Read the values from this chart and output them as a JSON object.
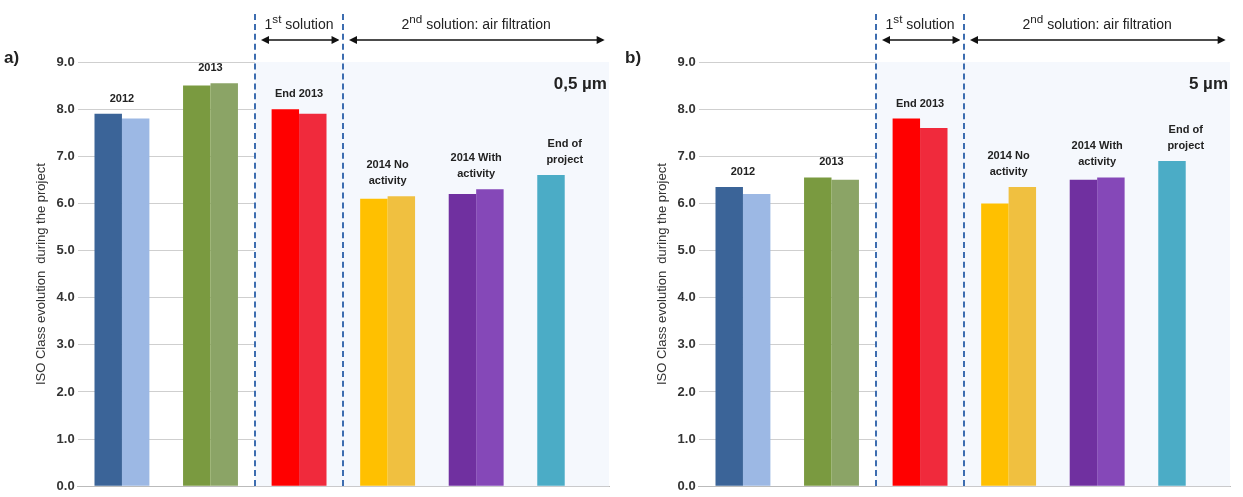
{
  "chart_data": [
    {
      "type": "bar",
      "ylabel": "ISO Class evolution  during the project",
      "categories": [
        "2012",
        "2013",
        "End 2013",
        "2014 No activity",
        "2014 With activity",
        "End of project"
      ],
      "series": [
        {
          "colors": [
            "#3b6498",
            "#7a9a40",
            "#ff0000",
            "#ffc000",
            "#7030a0",
            "#4bacc6"
          ],
          "values": [
            7.9,
            8.5,
            8.0,
            6.1,
            6.2,
            6.6
          ]
        },
        {
          "colors": [
            "#9cb8e4",
            "#8ba466",
            "#f02a3c",
            "#f0c040",
            "#8548b8",
            "#4bacc6"
          ],
          "values": [
            7.8,
            8.55,
            7.9,
            6.15,
            6.3,
            null
          ]
        }
      ],
      "ylim": [
        0,
        9
      ],
      "yticks": [
        {
          "value": 0,
          "label": "0.0"
        },
        {
          "value": 1,
          "label": "1.0"
        },
        {
          "value": 2,
          "label": "2.0"
        },
        {
          "value": 3,
          "label": "3.0"
        },
        {
          "value": 4,
          "label": "4.0"
        },
        {
          "value": 5,
          "label": "5.0"
        },
        {
          "value": 6,
          "label": "6.0"
        },
        {
          "value": 7,
          "label": "7.0"
        },
        {
          "value": 8,
          "label": "8.0"
        },
        {
          "value": 9,
          "label": "9.0"
        }
      ],
      "grid": "y",
      "legend": false,
      "tick_labels": "y",
      "bands": [
        {
          "axis": "x",
          "from": "End 2013",
          "to": "End 2013",
          "label": "1$^{st}$ solution",
          "color": "#f5f8fd"
        },
        {
          "axis": "x",
          "from": "2014 No activity",
          "to": "End of project",
          "label": "2$^{nd}$ solution: air filtration",
          "color": "#f5f8fd"
        }
      ],
      "annotations": [
        "a)",
        "0,5 µm"
      ]
    },
    {
      "type": "bar",
      "ylabel": "ISO Class evolution  during the project",
      "categories": [
        "2012",
        "2013",
        "End 2013",
        "2014 No activity",
        "2014 With activity",
        "End of project"
      ],
      "series": [
        {
          "colors": [
            "#3b6498",
            "#7a9a40",
            "#ff0000",
            "#ffc000",
            "#7030a0",
            "#4bacc6"
          ],
          "values": [
            6.35,
            6.55,
            7.8,
            6.0,
            6.5,
            6.9
          ]
        },
        {
          "colors": [
            "#9cb8e4",
            "#8ba466",
            "#f02a3c",
            "#f0c040",
            "#8548b8",
            "#4bacc6"
          ],
          "values": [
            6.2,
            6.5,
            7.6,
            6.35,
            6.55,
            null
          ]
        }
      ],
      "ylim": [
        0,
        9
      ],
      "yticks": [
        {
          "value": 0,
          "label": "0.0"
        },
        {
          "value": 1,
          "label": "1.0"
        },
        {
          "value": 2,
          "label": "2.0"
        },
        {
          "value": 3,
          "label": "3.0"
        },
        {
          "value": 4,
          "label": "4.0"
        },
        {
          "value": 5,
          "label": "5.0"
        },
        {
          "value": 6,
          "label": "6.0"
        },
        {
          "value": 7,
          "label": "7.0"
        },
        {
          "value": 8,
          "label": "8.0"
        },
        {
          "value": 9,
          "label": "9.0"
        }
      ],
      "grid": "y",
      "legend": false,
      "tick_labels": "y",
      "bands": [
        {
          "axis": "x",
          "from": "End 2013",
          "to": "End 2013",
          "label": "1$^{st}$ solution",
          "color": "#f5f8fd"
        },
        {
          "axis": "x",
          "from": "2014 No activity",
          "to": "End of project",
          "label": "2$^{nd}$ solution: air filtration",
          "color": "#f5f8fd"
        }
      ],
      "annotations": [
        "b)",
        "5 µm"
      ]
    }
  ]
}
